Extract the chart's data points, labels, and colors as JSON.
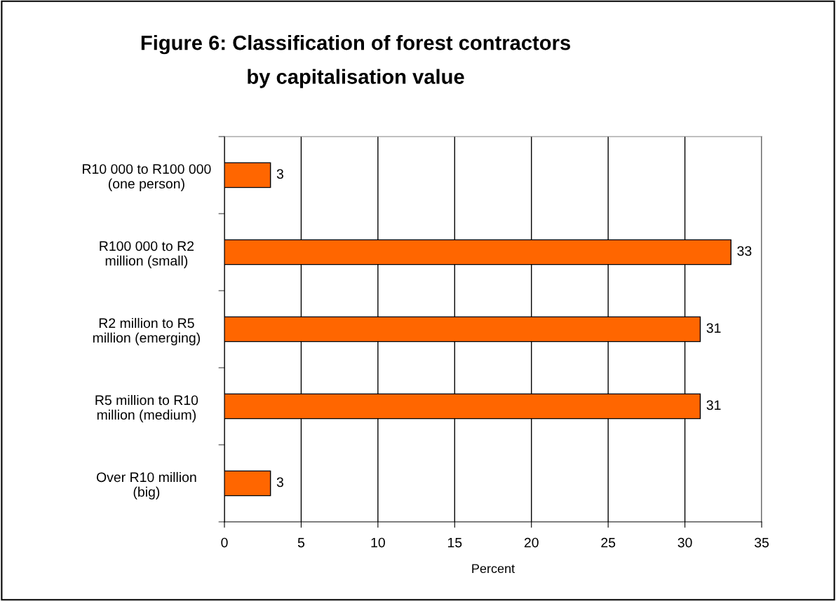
{
  "chart_data": {
    "type": "bar",
    "orientation": "horizontal",
    "title": "Figure 6: Classification of forest contractors\nby capitalisation value",
    "categories": [
      "R10 000 to R100 000\n(one person)",
      "R100 000 to R2\nmillion (small)",
      "R2 million to R5\nmillion (emerging)",
      "R5 million to R10\nmillion (medium)",
      "Over R10 million\n(big)"
    ],
    "values": [
      3,
      33,
      31,
      31,
      3
    ],
    "color": "#ff6600",
    "xlabel": "Percent",
    "xlim": [
      0,
      35
    ],
    "xticks": [
      0,
      5,
      10,
      15,
      20,
      25,
      30,
      35
    ],
    "grid": "x",
    "data_labels": true
  }
}
